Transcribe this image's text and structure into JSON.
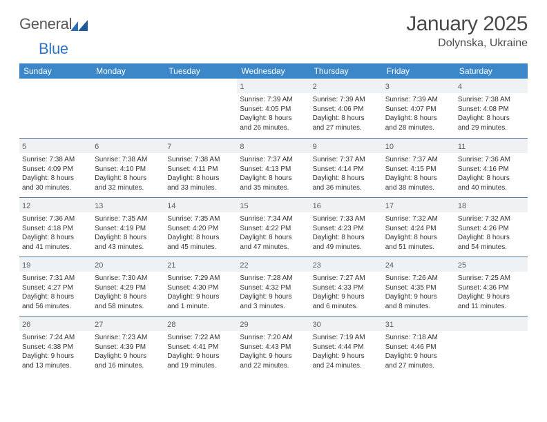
{
  "logo": {
    "word1": "Genera",
    "letterL": "l",
    "word2": "Blue"
  },
  "header": {
    "title": "January 2025",
    "location": "Dolynska, Ukraine"
  },
  "dayNames": [
    "Sunday",
    "Monday",
    "Tuesday",
    "Wednesday",
    "Thursday",
    "Friday",
    "Saturday"
  ],
  "colors": {
    "headerBg": "#3b87c8",
    "dayBarBg": "#eef2f5",
    "dayBarBorder": "#5b7a97",
    "logoGray": "#575757",
    "logoBlue": "#2f75c1"
  },
  "weeks": [
    [
      {
        "n": "",
        "lines": []
      },
      {
        "n": "",
        "lines": []
      },
      {
        "n": "",
        "lines": []
      },
      {
        "n": "1",
        "lines": [
          "Sunrise: 7:39 AM",
          "Sunset: 4:05 PM",
          "Daylight: 8 hours",
          "and 26 minutes."
        ]
      },
      {
        "n": "2",
        "lines": [
          "Sunrise: 7:39 AM",
          "Sunset: 4:06 PM",
          "Daylight: 8 hours",
          "and 27 minutes."
        ]
      },
      {
        "n": "3",
        "lines": [
          "Sunrise: 7:39 AM",
          "Sunset: 4:07 PM",
          "Daylight: 8 hours",
          "and 28 minutes."
        ]
      },
      {
        "n": "4",
        "lines": [
          "Sunrise: 7:38 AM",
          "Sunset: 4:08 PM",
          "Daylight: 8 hours",
          "and 29 minutes."
        ]
      }
    ],
    [
      {
        "n": "5",
        "lines": [
          "Sunrise: 7:38 AM",
          "Sunset: 4:09 PM",
          "Daylight: 8 hours",
          "and 30 minutes."
        ]
      },
      {
        "n": "6",
        "lines": [
          "Sunrise: 7:38 AM",
          "Sunset: 4:10 PM",
          "Daylight: 8 hours",
          "and 32 minutes."
        ]
      },
      {
        "n": "7",
        "lines": [
          "Sunrise: 7:38 AM",
          "Sunset: 4:11 PM",
          "Daylight: 8 hours",
          "and 33 minutes."
        ]
      },
      {
        "n": "8",
        "lines": [
          "Sunrise: 7:37 AM",
          "Sunset: 4:13 PM",
          "Daylight: 8 hours",
          "and 35 minutes."
        ]
      },
      {
        "n": "9",
        "lines": [
          "Sunrise: 7:37 AM",
          "Sunset: 4:14 PM",
          "Daylight: 8 hours",
          "and 36 minutes."
        ]
      },
      {
        "n": "10",
        "lines": [
          "Sunrise: 7:37 AM",
          "Sunset: 4:15 PM",
          "Daylight: 8 hours",
          "and 38 minutes."
        ]
      },
      {
        "n": "11",
        "lines": [
          "Sunrise: 7:36 AM",
          "Sunset: 4:16 PM",
          "Daylight: 8 hours",
          "and 40 minutes."
        ]
      }
    ],
    [
      {
        "n": "12",
        "lines": [
          "Sunrise: 7:36 AM",
          "Sunset: 4:18 PM",
          "Daylight: 8 hours",
          "and 41 minutes."
        ]
      },
      {
        "n": "13",
        "lines": [
          "Sunrise: 7:35 AM",
          "Sunset: 4:19 PM",
          "Daylight: 8 hours",
          "and 43 minutes."
        ]
      },
      {
        "n": "14",
        "lines": [
          "Sunrise: 7:35 AM",
          "Sunset: 4:20 PM",
          "Daylight: 8 hours",
          "and 45 minutes."
        ]
      },
      {
        "n": "15",
        "lines": [
          "Sunrise: 7:34 AM",
          "Sunset: 4:22 PM",
          "Daylight: 8 hours",
          "and 47 minutes."
        ]
      },
      {
        "n": "16",
        "lines": [
          "Sunrise: 7:33 AM",
          "Sunset: 4:23 PM",
          "Daylight: 8 hours",
          "and 49 minutes."
        ]
      },
      {
        "n": "17",
        "lines": [
          "Sunrise: 7:32 AM",
          "Sunset: 4:24 PM",
          "Daylight: 8 hours",
          "and 51 minutes."
        ]
      },
      {
        "n": "18",
        "lines": [
          "Sunrise: 7:32 AM",
          "Sunset: 4:26 PM",
          "Daylight: 8 hours",
          "and 54 minutes."
        ]
      }
    ],
    [
      {
        "n": "19",
        "lines": [
          "Sunrise: 7:31 AM",
          "Sunset: 4:27 PM",
          "Daylight: 8 hours",
          "and 56 minutes."
        ]
      },
      {
        "n": "20",
        "lines": [
          "Sunrise: 7:30 AM",
          "Sunset: 4:29 PM",
          "Daylight: 8 hours",
          "and 58 minutes."
        ]
      },
      {
        "n": "21",
        "lines": [
          "Sunrise: 7:29 AM",
          "Sunset: 4:30 PM",
          "Daylight: 9 hours",
          "and 1 minute."
        ]
      },
      {
        "n": "22",
        "lines": [
          "Sunrise: 7:28 AM",
          "Sunset: 4:32 PM",
          "Daylight: 9 hours",
          "and 3 minutes."
        ]
      },
      {
        "n": "23",
        "lines": [
          "Sunrise: 7:27 AM",
          "Sunset: 4:33 PM",
          "Daylight: 9 hours",
          "and 6 minutes."
        ]
      },
      {
        "n": "24",
        "lines": [
          "Sunrise: 7:26 AM",
          "Sunset: 4:35 PM",
          "Daylight: 9 hours",
          "and 8 minutes."
        ]
      },
      {
        "n": "25",
        "lines": [
          "Sunrise: 7:25 AM",
          "Sunset: 4:36 PM",
          "Daylight: 9 hours",
          "and 11 minutes."
        ]
      }
    ],
    [
      {
        "n": "26",
        "lines": [
          "Sunrise: 7:24 AM",
          "Sunset: 4:38 PM",
          "Daylight: 9 hours",
          "and 13 minutes."
        ]
      },
      {
        "n": "27",
        "lines": [
          "Sunrise: 7:23 AM",
          "Sunset: 4:39 PM",
          "Daylight: 9 hours",
          "and 16 minutes."
        ]
      },
      {
        "n": "28",
        "lines": [
          "Sunrise: 7:22 AM",
          "Sunset: 4:41 PM",
          "Daylight: 9 hours",
          "and 19 minutes."
        ]
      },
      {
        "n": "29",
        "lines": [
          "Sunrise: 7:20 AM",
          "Sunset: 4:43 PM",
          "Daylight: 9 hours",
          "and 22 minutes."
        ]
      },
      {
        "n": "30",
        "lines": [
          "Sunrise: 7:19 AM",
          "Sunset: 4:44 PM",
          "Daylight: 9 hours",
          "and 24 minutes."
        ]
      },
      {
        "n": "31",
        "lines": [
          "Sunrise: 7:18 AM",
          "Sunset: 4:46 PM",
          "Daylight: 9 hours",
          "and 27 minutes."
        ]
      },
      {
        "n": "",
        "lines": []
      }
    ]
  ]
}
